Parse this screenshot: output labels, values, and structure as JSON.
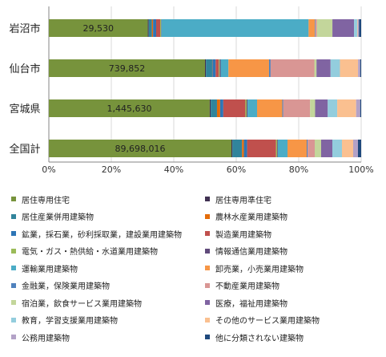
{
  "chart_data": {
    "type": "bar",
    "orientation": "horizontal",
    "stacked": "percent",
    "categories": [
      "岩沼市",
      "仙台市",
      "宮城県",
      "全国計"
    ],
    "totals": [
      "29,530",
      "739,852",
      "1,445,630",
      "89,698,016"
    ],
    "xlim": [
      0,
      100
    ],
    "xticks": [
      "0%",
      "20%",
      "40%",
      "60%",
      "80%",
      "100%"
    ],
    "grid": "vertical",
    "legend_position": "bottom",
    "series": [
      {
        "name": "居住専用住宅",
        "color": "#77933C",
        "values": [
          32.0,
          50.0,
          51.0,
          57.0
        ]
      },
      {
        "name": "居住専用準住宅",
        "color": "#403152",
        "values": [
          0.3,
          0.3,
          0.3,
          0.3
        ]
      },
      {
        "name": "居住産業併用建築物",
        "color": "#31849B",
        "values": [
          1.0,
          2.0,
          2.0,
          3.0
        ]
      },
      {
        "name": "農林水産業用建築物",
        "color": "#E46C0A",
        "values": [
          0.4,
          0.1,
          1.0,
          0.6
        ]
      },
      {
        "name": "鉱業，採石業，砂利採取業，建設業用建築物",
        "color": "#2E75B6",
        "values": [
          1.0,
          1.0,
          1.0,
          1.0
        ]
      },
      {
        "name": "製造業用建築物",
        "color": "#C0504D",
        "values": [
          1.3,
          1.0,
          7.0,
          9.0
        ]
      },
      {
        "name": "電気・ガス・熱供給・水道業用建築物",
        "color": "#9BBB59",
        "values": [
          0.3,
          0.3,
          0.4,
          0.4
        ]
      },
      {
        "name": "情報通信業用建築物",
        "color": "#604A7B",
        "values": [
          0.1,
          0.3,
          0.3,
          0.2
        ]
      },
      {
        "name": "運輸業用建築物",
        "color": "#4BACC6",
        "values": [
          47.6,
          2.5,
          3.0,
          3.0
        ]
      },
      {
        "name": "卸売業，小売業用建築物",
        "color": "#F79646",
        "values": [
          2.0,
          13.0,
          8.0,
          6.0
        ]
      },
      {
        "name": "金融業，保険業用建築物",
        "color": "#4F81BD",
        "values": [
          0.2,
          0.5,
          0.3,
          0.3
        ]
      },
      {
        "name": "不動産業用建築物",
        "color": "#D99694",
        "values": [
          0.5,
          14.0,
          8.5,
          2.2
        ]
      },
      {
        "name": "宿泊業，飲食サービス業用建築物",
        "color": "#C3D69B",
        "values": [
          5.0,
          0.7,
          1.6,
          2.0
        ]
      },
      {
        "name": "医療，福祉用建築物",
        "color": "#8064A2",
        "values": [
          7.0,
          4.5,
          4.0,
          3.5
        ]
      },
      {
        "name": "教育，学習支援業用建築物",
        "color": "#93CDDD",
        "values": [
          1.0,
          3.0,
          3.0,
          3.0
        ]
      },
      {
        "name": "その他のサービス業用建築物",
        "color": "#FAC090",
        "values": [
          0.2,
          5.8,
          6.0,
          3.5
        ]
      },
      {
        "name": "公務用建築物",
        "color": "#B3A2C7",
        "values": [
          0.4,
          0.7,
          1.3,
          1.5
        ]
      },
      {
        "name": "他に分類されない建築物",
        "color": "#1F497D",
        "values": [
          0.7,
          0.3,
          0.3,
          1.0
        ]
      }
    ]
  }
}
